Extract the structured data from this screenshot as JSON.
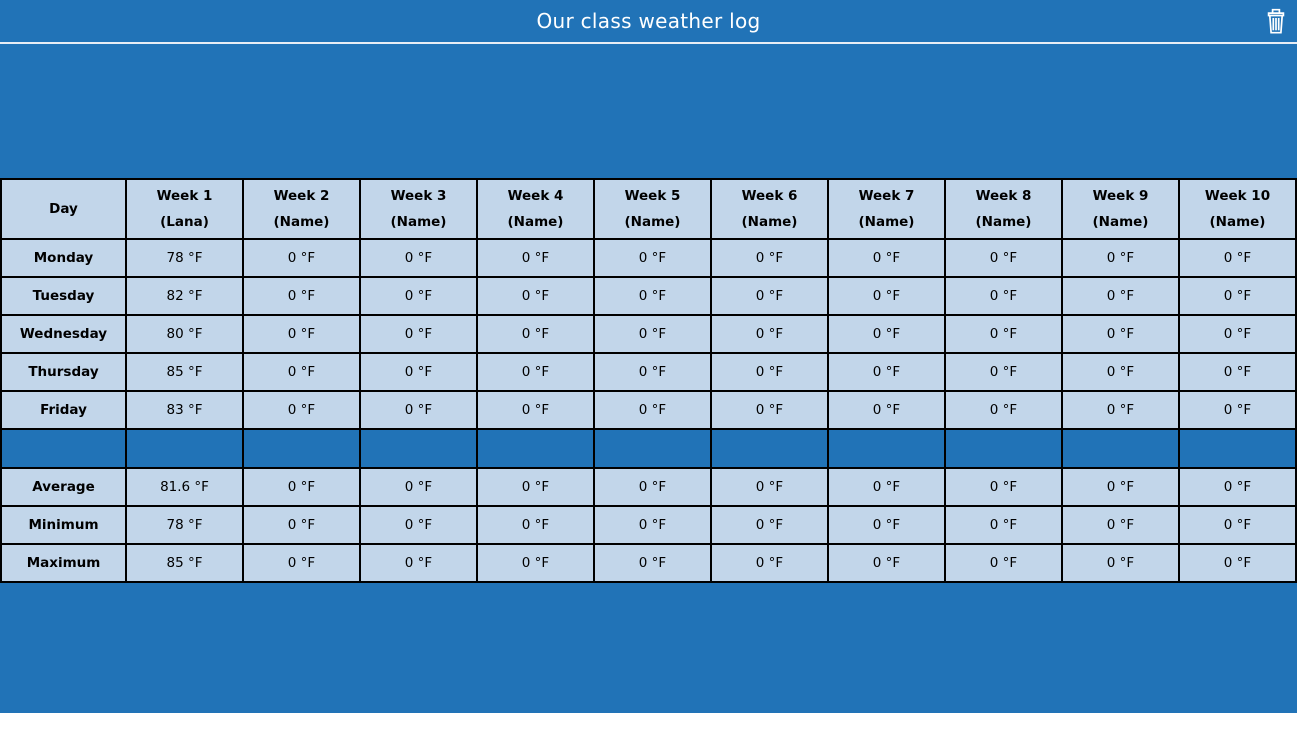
{
  "header": {
    "title": "Our class weather log",
    "trash_icon": "trash"
  },
  "table": {
    "columns": [
      {
        "label": "Day",
        "sub": ""
      },
      {
        "label": "Week 1",
        "sub": "(Lana)"
      },
      {
        "label": "Week 2",
        "sub": "(Name)"
      },
      {
        "label": "Week 3",
        "sub": "(Name)"
      },
      {
        "label": "Week 4",
        "sub": "(Name)"
      },
      {
        "label": "Week 5",
        "sub": "(Name)"
      },
      {
        "label": "Week 6",
        "sub": "(Name)"
      },
      {
        "label": "Week 7",
        "sub": "(Name)"
      },
      {
        "label": "Week 8",
        "sub": "(Name)"
      },
      {
        "label": "Week 9",
        "sub": "(Name)"
      },
      {
        "label": "Week 10",
        "sub": "(Name)"
      }
    ],
    "day_rows": [
      {
        "label": "Monday",
        "values": [
          "78 °F",
          "0 °F",
          "0 °F",
          "0 °F",
          "0 °F",
          "0 °F",
          "0 °F",
          "0 °F",
          "0 °F",
          "0 °F"
        ]
      },
      {
        "label": "Tuesday",
        "values": [
          "82 °F",
          "0 °F",
          "0 °F",
          "0 °F",
          "0 °F",
          "0 °F",
          "0 °F",
          "0 °F",
          "0 °F",
          "0 °F"
        ]
      },
      {
        "label": "Wednesday",
        "values": [
          "80 °F",
          "0 °F",
          "0 °F",
          "0 °F",
          "0 °F",
          "0 °F",
          "0 °F",
          "0 °F",
          "0 °F",
          "0 °F"
        ]
      },
      {
        "label": "Thursday",
        "values": [
          "85 °F",
          "0 °F",
          "0 °F",
          "0 °F",
          "0 °F",
          "0 °F",
          "0 °F",
          "0 °F",
          "0 °F",
          "0 °F"
        ]
      },
      {
        "label": "Friday",
        "values": [
          "83 °F",
          "0 °F",
          "0 °F",
          "0 °F",
          "0 °F",
          "0 °F",
          "0 °F",
          "0 °F",
          "0 °F",
          "0 °F"
        ]
      }
    ],
    "summary_rows": [
      {
        "label": "Average",
        "values": [
          "81.6 °F",
          "0 °F",
          "0 °F",
          "0 °F",
          "0 °F",
          "0 °F",
          "0 °F",
          "0 °F",
          "0 °F",
          "0 °F"
        ]
      },
      {
        "label": "Minimum",
        "values": [
          "78 °F",
          "0 °F",
          "0 °F",
          "0 °F",
          "0 °F",
          "0 °F",
          "0 °F",
          "0 °F",
          "0 °F",
          "0 °F"
        ]
      },
      {
        "label": "Maximum",
        "values": [
          "85 °F",
          "0 °F",
          "0 °F",
          "0 °F",
          "0 °F",
          "0 °F",
          "0 °F",
          "0 °F",
          "0 °F",
          "0 °F"
        ]
      }
    ]
  },
  "colors": {
    "page_blue": "#2173b7",
    "cell_blue": "#c2d6ea",
    "border_black": "#000000",
    "title_text": "#ffffff",
    "topbar_divider": "#e7edf5"
  }
}
